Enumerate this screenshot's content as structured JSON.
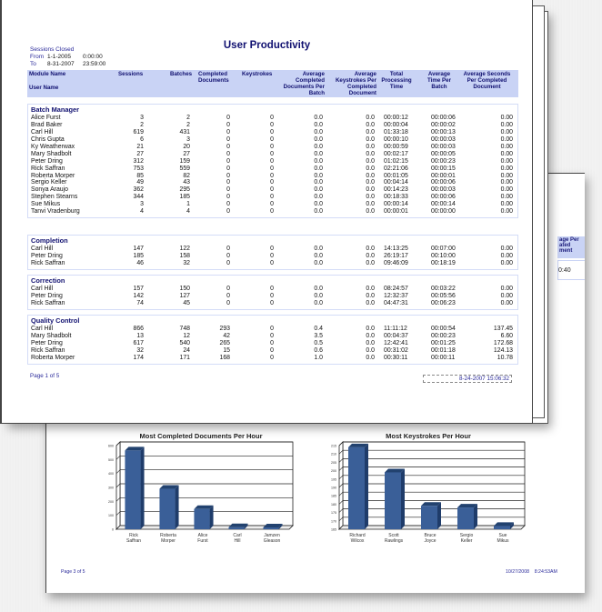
{
  "report": {
    "title": "User Productivity",
    "filter": {
      "label": "Sessions Closed",
      "from_label": "From",
      "from_date": "1-1-2005",
      "from_time": "0:00:00",
      "to_label": "To",
      "to_date": "8-31-2007",
      "to_time": "23:59:00"
    },
    "columns": {
      "module_name": "Module Name",
      "user_name": "User Name",
      "sessions": "Sessions",
      "batches": "Batches",
      "completed_documents": "Completed Documents",
      "keystrokes": "Keystrokes",
      "avg_completed_docs_per_batch": "Average Completed Documents Per Batch",
      "avg_keystrokes_per_doc": "Average Keystrokes Per Completed Document",
      "total_processing_time": "Total Processing Time",
      "avg_time_per_batch": "Average Time Per Batch",
      "avg_seconds_per_doc": "Average Seconds Per Completed Document"
    },
    "groups": [
      {
        "name": "Batch Manager",
        "rows": [
          [
            "Alice Furst",
            "3",
            "2",
            "0",
            "0",
            "0.0",
            "0.0",
            "00:00:12",
            "00:00:06",
            "0.00"
          ],
          [
            "Brad Baker",
            "2",
            "2",
            "0",
            "0",
            "0.0",
            "0.0",
            "00:00:04",
            "00:00:02",
            "0.00"
          ],
          [
            "Carl Hill",
            "619",
            "431",
            "0",
            "0",
            "0.0",
            "0.0",
            "01:33:18",
            "00:00:13",
            "0.00"
          ],
          [
            "Chris Gupta",
            "6",
            "3",
            "0",
            "0",
            "0.0",
            "0.0",
            "00:00:10",
            "00:00:03",
            "0.00"
          ],
          [
            "Ky Weatherwax",
            "21",
            "20",
            "0",
            "0",
            "0.0",
            "0.0",
            "00:00:59",
            "00:00:03",
            "0.00"
          ],
          [
            "Mary Shadbolt",
            "27",
            "27",
            "0",
            "0",
            "0.0",
            "0.0",
            "00:02:17",
            "00:00:05",
            "0.00"
          ],
          [
            "Peter Dring",
            "312",
            "159",
            "0",
            "0",
            "0.0",
            "0.0",
            "01:02:15",
            "00:00:23",
            "0.00"
          ],
          [
            "Rick Saffran",
            "753",
            "559",
            "0",
            "0",
            "0.0",
            "0.0",
            "02:21:06",
            "00:00:15",
            "0.00"
          ],
          [
            "Roberta Morper",
            "85",
            "82",
            "0",
            "0",
            "0.0",
            "0.0",
            "00:01:05",
            "00:00:01",
            "0.00"
          ],
          [
            "Sergio Keller",
            "49",
            "43",
            "0",
            "0",
            "0.0",
            "0.0",
            "00:04:14",
            "00:00:06",
            "0.00"
          ],
          [
            "Sonya Araujo",
            "362",
            "295",
            "0",
            "0",
            "0.0",
            "0.0",
            "00:14:23",
            "00:00:03",
            "0.00"
          ],
          [
            "Stephen Stearns",
            "344",
            "185",
            "0",
            "0",
            "0.0",
            "0.0",
            "00:18:33",
            "00:00:06",
            "0.00"
          ],
          [
            "Sue Mikus",
            "3",
            "1",
            "0",
            "0",
            "0.0",
            "0.0",
            "00:00:14",
            "00:00:14",
            "0.00"
          ],
          [
            "Tanvi Vradenburg",
            "4",
            "4",
            "0",
            "0",
            "0.0",
            "0.0",
            "00:00:01",
            "00:00:00",
            "0.00"
          ]
        ]
      },
      {
        "name": "Completion",
        "rows": [
          [
            "Carl Hill",
            "147",
            "122",
            "0",
            "0",
            "0.0",
            "0.0",
            "14:13:25",
            "00:07:00",
            "0.00"
          ],
          [
            "Peter Dring",
            "185",
            "158",
            "0",
            "0",
            "0.0",
            "0.0",
            "26:19:17",
            "00:10:00",
            "0.00"
          ],
          [
            "Rick Saffran",
            "46",
            "32",
            "0",
            "0",
            "0.0",
            "0.0",
            "09:46:09",
            "00:18:19",
            "0.00"
          ]
        ]
      },
      {
        "name": "Correction",
        "rows": [
          [
            "Carl Hill",
            "157",
            "150",
            "0",
            "0",
            "0.0",
            "0.0",
            "08:24:57",
            "00:03:22",
            "0.00"
          ],
          [
            "Peter Dring",
            "142",
            "127",
            "0",
            "0",
            "0.0",
            "0.0",
            "12:32:37",
            "00:05:56",
            "0.00"
          ],
          [
            "Rick Saffran",
            "74",
            "45",
            "0",
            "0",
            "0.0",
            "0.0",
            "04:47:31",
            "00:06:23",
            "0.00"
          ]
        ]
      },
      {
        "name": "Quality Control",
        "rows": [
          [
            "Carl Hill",
            "866",
            "748",
            "293",
            "0",
            "0.4",
            "0.0",
            "11:11:12",
            "00:00:54",
            "137.45"
          ],
          [
            "Mary Shadbolt",
            "13",
            "12",
            "42",
            "0",
            "3.5",
            "0.0",
            "00:04:37",
            "00:00:23",
            "6.60"
          ],
          [
            "Peter Dring",
            "617",
            "540",
            "265",
            "0",
            "0.5",
            "0.0",
            "12:42:41",
            "00:01:25",
            "172.68"
          ],
          [
            "Rick Saffran",
            "32",
            "24",
            "15",
            "0",
            "0.6",
            "0.0",
            "00:31:02",
            "00:01:18",
            "124.13"
          ],
          [
            "Roberta Morper",
            "174",
            "171",
            "168",
            "0",
            "1.0",
            "0.0",
            "00:30:11",
            "00:00:11",
            "10.78"
          ]
        ]
      }
    ],
    "footer": {
      "page": "Page 1 of 5",
      "printed": "8-24-2007 15:06:32"
    }
  },
  "back_page": {
    "peek_header": "age Per ated ment",
    "peek_value": "0:40",
    "footer": {
      "page": "Page 3 of 5",
      "date": "10/27/2008",
      "time": "8:24:53AM"
    }
  },
  "chart_data": [
    {
      "type": "bar",
      "title": "Most Completed Documents Per Hour",
      "categories": [
        "Rick Saffran",
        "Roberta Morper",
        "Alice Furst",
        "Carl Hill",
        "Jamzen Gleason"
      ],
      "values": [
        565,
        290,
        145,
        15,
        12
      ],
      "xlabel": "",
      "ylabel": "",
      "ylim": [
        0,
        600
      ],
      "yticks": [
        0,
        100,
        200,
        300,
        400,
        500,
        600
      ],
      "grid": true,
      "color": "#3a5f98"
    },
    {
      "type": "bar",
      "title": "Most Keystrokes Per Hour",
      "categories": [
        "Richard Wilcox",
        "Scott Rawlings",
        "Bruce Joyce",
        "Sergio Keller",
        "Sue Mikus"
      ],
      "values": [
        214,
        199,
        179,
        178,
        167
      ],
      "xlabel": "",
      "ylabel": "",
      "ylim": [
        165,
        215
      ],
      "yticks": [
        165,
        170,
        175,
        180,
        185,
        190,
        195,
        200,
        205,
        210,
        215
      ],
      "grid": true,
      "color": "#3a5f98"
    }
  ]
}
